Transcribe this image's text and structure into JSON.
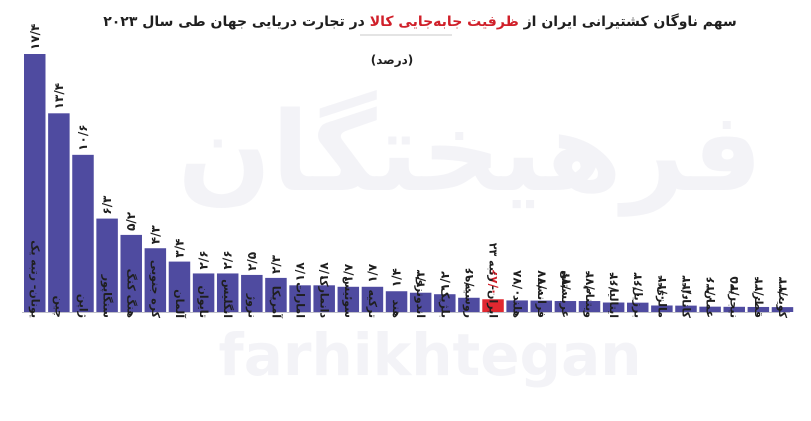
{
  "chart_data": {
    "type": "bar",
    "title": "سهم ناوگان کشتیرانی ایران از ظرفیت جابه‌جایی کالا در تجارت دریایی جهان طی سال ۲۰۲۳",
    "title_parts": {
      "before": "سهم ناوگان کشتیرانی ایران از",
      "highlight": "ظرفیت جابه‌جایی کالا",
      "after": "در تجارت دریایی جهان طی سال ۲۰۲۳"
    },
    "subtitle": "(درصد)",
    "categories": [
      "یونان- رتبه یک",
      "چین",
      "ژاپن",
      "سنگاپور",
      "هنگ کنگ",
      "کره جنوبی",
      "آلمان",
      "تایوان",
      "انگلیس",
      "نروژ",
      "آمریکا",
      "امارات",
      "دانمارک",
      "سوئیس",
      "ترکیه",
      "هند",
      "اندونزی",
      "بلژیک",
      "روسیه",
      "ایران- رتبه ۲۳",
      "هلند",
      "فرانسه",
      "عربستان",
      "ویتنام",
      "ایتالیا",
      "برزیل",
      "مالزی",
      "کانادا",
      "عمان",
      "نیجریه",
      "قطر",
      "کویت"
    ],
    "values": [
      17.4,
      13.4,
      10.6,
      6.3,
      5.2,
      4.3,
      3.4,
      2.6,
      2.6,
      2.5,
      2.3,
      1.8,
      1.8,
      1.7,
      1.7,
      1.4,
      1.3,
      1.2,
      0.96,
      0.86,
      0.78,
      0.77,
      0.74,
      0.74,
      0.64,
      0.63,
      0.44,
      0.43,
      0.36,
      0.35,
      0.34,
      0.33
    ],
    "value_labels": [
      "۱۷/۴",
      "۱۳/۴",
      "۱۰/۶",
      "۶/۳",
      "۵/۲",
      "۴/۳",
      "۳/۴",
      "۲/۶",
      "۲/۶",
      "۲/۵",
      "۲/۳",
      "۱/۸",
      "۱/۸",
      "۱/۷",
      "۱/۷",
      "۱/۴",
      "۱/۳",
      "۱/۲",
      "۰/۹۶",
      "۰/۸۶",
      "۰/۷۸",
      "۰/۷۷",
      "۰/۷۴",
      "۰/۷۴",
      "۰/۶۴",
      "۰/۶۳",
      "۰/۴۴",
      "۰/۴۳",
      "۰/۳۶",
      "۰/۳۵",
      "۰/۳۴",
      "۰/۳۳"
    ],
    "highlight_index": 19,
    "ylim": [
      0,
      17.4
    ],
    "grid": false,
    "colors": {
      "bar": "#4f4ba0",
      "highlight": "#e02830",
      "title_highlight": "#d0202a",
      "text": "#1f1f1f"
    }
  },
  "watermark": {
    "persian": "فرهیختگان",
    "latin": "farhikhtegan"
  }
}
